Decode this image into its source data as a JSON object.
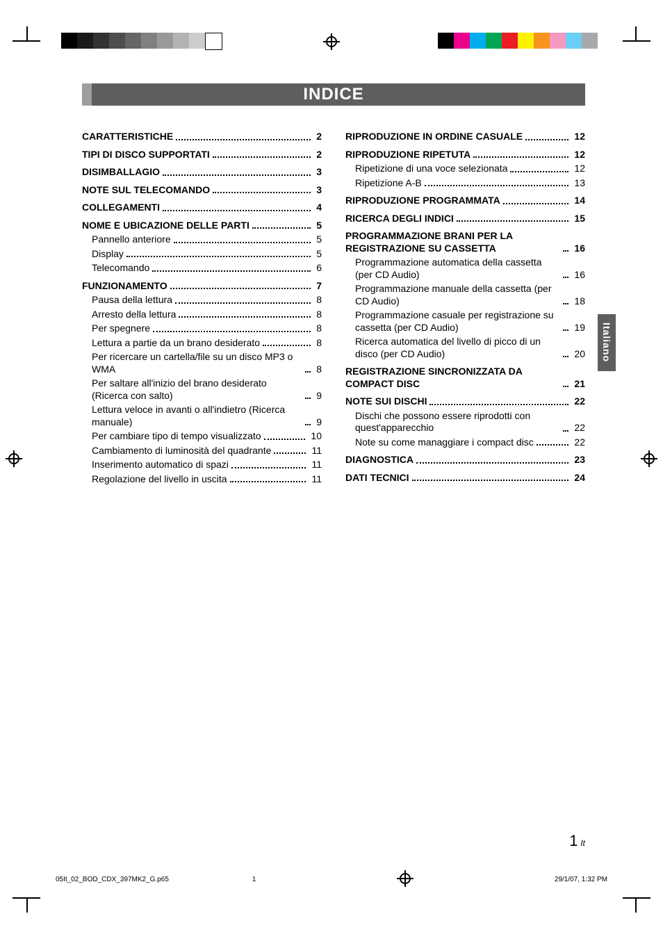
{
  "title": "INDICE",
  "side_tab": "Italiano",
  "page_number": {
    "num": "1",
    "suffix": "It"
  },
  "footer": {
    "filename": "05It_02_BOD_CDX_397MK2_G.p65",
    "page": "1",
    "timestamp": "29/1/07, 1:32 PM"
  },
  "color_bars": {
    "left": [
      "#000000",
      "#1a1a1a",
      "#333333",
      "#4d4d4d",
      "#666666",
      "#808080",
      "#999999",
      "#b3b3b3",
      "#cccccc",
      "#ffffff"
    ],
    "right": [
      "#000000",
      "#ec008c",
      "#00aeef",
      "#00a651",
      "#ed1c24",
      "#fff200",
      "#f7941d",
      "#f49ac1",
      "#6dcff6",
      "#a7a9ac"
    ]
  },
  "left_col": [
    {
      "t": "main",
      "label": "CARATTERISTICHE",
      "page": "2"
    },
    {
      "t": "main",
      "label": "TIPI DI DISCO SUPPORTATI",
      "page": "2"
    },
    {
      "t": "main",
      "label": "DISIMBALLAGIO",
      "page": "3"
    },
    {
      "t": "main",
      "label": "NOTE SUL TELECOMANDO",
      "page": "3"
    },
    {
      "t": "main",
      "label": "COLLEGAMENTI",
      "page": "4"
    },
    {
      "t": "main",
      "label": "NOME E UBICAZIONE DELLE PARTI",
      "page": "5"
    },
    {
      "t": "sub",
      "label": "Pannello anteriore",
      "page": "5"
    },
    {
      "t": "sub",
      "label": "Display",
      "page": "5"
    },
    {
      "t": "sub",
      "label": "Telecomando",
      "page": "6"
    },
    {
      "t": "main",
      "label": "FUNZIONAMENTO",
      "page": "7"
    },
    {
      "t": "sub",
      "label": "Pausa della lettura",
      "page": "8"
    },
    {
      "t": "sub",
      "label": "Arresto della lettura",
      "page": "8"
    },
    {
      "t": "sub",
      "label": "Per spegnere",
      "page": "8"
    },
    {
      "t": "sub",
      "label": "Lettura a partie da un brano desiderato",
      "page": "8"
    },
    {
      "t": "sub",
      "label": "Per ricercare un cartella/file su un disco MP3 o WMA",
      "page": "8"
    },
    {
      "t": "sub",
      "label": "Per saltare all'inizio del brano desiderato (Ricerca con salto)",
      "page": "9"
    },
    {
      "t": "sub",
      "label": "Lettura veloce in avanti o all'indietro (Ricerca manuale)",
      "page": "9"
    },
    {
      "t": "sub",
      "label": "Per cambiare tipo di tempo visualizzato",
      "page": "10"
    },
    {
      "t": "sub",
      "label": "Cambiamento di luminosità del quadrante",
      "page": "11"
    },
    {
      "t": "sub",
      "label": "Inserimento automatico di spazi",
      "page": "11"
    },
    {
      "t": "sub",
      "label": "Regolazione del livello in uscita",
      "page": "11"
    }
  ],
  "right_col": [
    {
      "t": "main",
      "label": "RIPRODUZIONE IN ORDINE CASUALE",
      "page": "12"
    },
    {
      "t": "main",
      "label": "RIPRODUZIONE RIPETUTA",
      "page": "12"
    },
    {
      "t": "sub",
      "label": "Ripetizione di una voce selezionata",
      "page": "12"
    },
    {
      "t": "sub",
      "label": "Ripetizione A-B",
      "page": "13"
    },
    {
      "t": "main",
      "label": "RIPRODUZIONE PROGRAMMATA",
      "page": "14"
    },
    {
      "t": "main",
      "label": "RICERCA DEGLI INDICI",
      "page": "15"
    },
    {
      "t": "main",
      "label": "PROGRAMMAZIONE BRANI PER LA REGISTRAZIONE SU CASSETTA",
      "page": "16"
    },
    {
      "t": "sub",
      "label": "Programmazione automatica della cassetta (per CD Audio)",
      "page": "16"
    },
    {
      "t": "sub",
      "label": "Programmazione manuale della cassetta (per CD Audio)",
      "page": "18"
    },
    {
      "t": "sub",
      "label": "Programmazione casuale per registrazione su cassetta (per CD Audio)",
      "page": "19"
    },
    {
      "t": "sub",
      "label": "Ricerca automatica del livello di picco di un disco (per CD Audio)",
      "page": "20"
    },
    {
      "t": "main",
      "label": "REGISTRAZIONE SINCRONIZZATA DA COMPACT DISC",
      "page": "21"
    },
    {
      "t": "main",
      "label": "NOTE SUI DISCHI",
      "page": "22"
    },
    {
      "t": "sub",
      "label": "Dischi che possono essere riprodotti con quest'apparecchio",
      "page": "22"
    },
    {
      "t": "sub",
      "label": "Note su come managgiare i compact disc",
      "page": "22"
    },
    {
      "t": "main",
      "label": "DIAGNOSTICA",
      "page": "23"
    },
    {
      "t": "main",
      "label": "DATI TECNICI",
      "page": "24"
    }
  ]
}
